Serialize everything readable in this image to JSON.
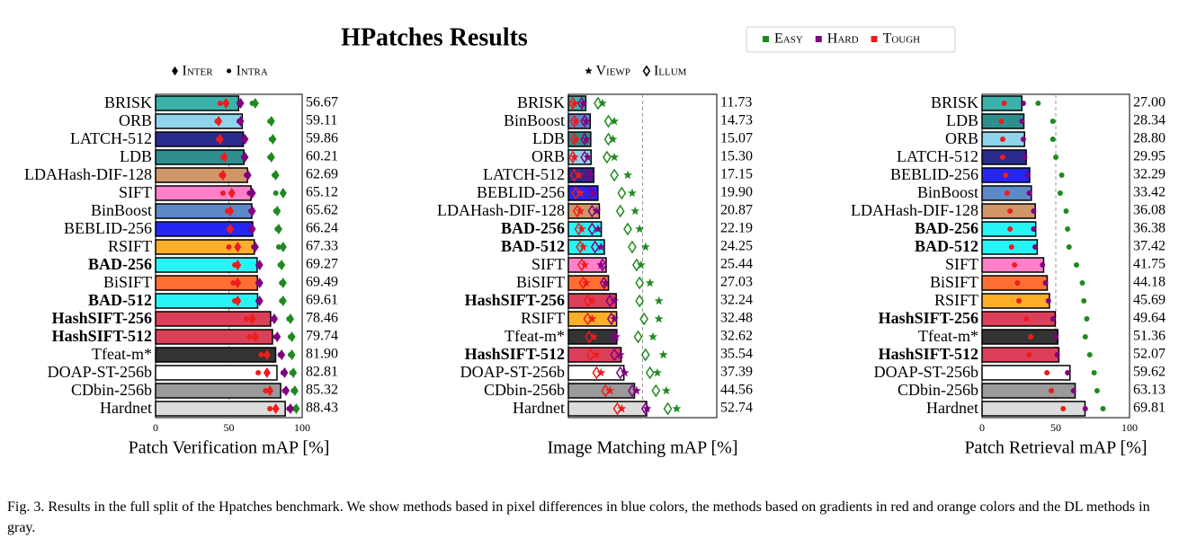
{
  "title": "HPatches Results",
  "legend": [
    {
      "name": "Easy",
      "color": "#1f8a1f"
    },
    {
      "name": "Hard",
      "color": "#800080"
    },
    {
      "name": "Tough",
      "color": "#ee1c1c"
    }
  ],
  "caption": "Fig. 3.  Results in the full split of the Hpatches benchmark. We show methods based in pixel differences in blue colors, the methods based on gradients in red and orange colors and the DL methods in gray.",
  "chart_data": [
    {
      "type": "bar",
      "orientation": "horizontal",
      "xlabel": "Patch Verification mAP [%]",
      "marker_legend": [
        {
          "name": "Inter",
          "marker": "diamond"
        },
        {
          "name": "Intra",
          "marker": "dot"
        }
      ],
      "categories": [
        "BRISK",
        "ORB",
        "LATCH-512",
        "LDB",
        "LDAHash-DIF-128",
        "SIFT",
        "BinBoost",
        "BEBLID-256",
        "RSIFT",
        "BAD-256",
        "BiSIFT",
        "BAD-512",
        "HashSIFT-256",
        "HashSIFT-512",
        "Tfeat-m*",
        "DOAP-ST-256b",
        "CDbin-256b",
        "Hardnet"
      ],
      "bold": [
        false,
        false,
        false,
        false,
        false,
        false,
        false,
        false,
        false,
        true,
        false,
        true,
        true,
        true,
        false,
        false,
        false,
        false
      ],
      "values": [
        56.67,
        59.11,
        59.86,
        60.21,
        62.69,
        65.12,
        65.62,
        66.24,
        67.33,
        69.27,
        69.49,
        69.61,
        78.46,
        79.74,
        81.9,
        82.81,
        85.32,
        88.43
      ],
      "value_labels": [
        "56.67",
        "59.11",
        "59.86",
        "60.21",
        "62.69",
        "65.12",
        "65.62",
        "66.24",
        "67.33",
        "69.27",
        "69.49",
        "69.61",
        "78.46",
        "79.74",
        "81.90",
        "82.81",
        "85.32",
        "88.43"
      ],
      "colors": [
        "#3cb3aa",
        "#8fd3ec",
        "#2b2b8f",
        "#2f8f8f",
        "#d09668",
        "#ff80c8",
        "#5b8ac6",
        "#2525f5",
        "#ffae2a",
        "#26f5f5",
        "#ff6e32",
        "#26f5f5",
        "#dc4058",
        "#dc4058",
        "#333333",
        "#ffffff",
        "#9a9a9a",
        "#dcdcdc"
      ],
      "series": [
        {
          "color": "#1f8a1f",
          "marker": "diamond",
          "values": [
            68,
            79,
            80,
            79,
            82,
            87,
            83,
            84,
            87,
            86,
            87,
            87,
            92,
            93,
            93,
            94,
            95,
            96
          ]
        },
        {
          "color": "#1f8a1f",
          "marker": "dot",
          "values": [
            66,
            78,
            79,
            78,
            81,
            82,
            82,
            83,
            84,
            85,
            86,
            86,
            91,
            92,
            92,
            93,
            94,
            95
          ]
        },
        {
          "color": "#800080",
          "marker": "diamond",
          "values": [
            58,
            58,
            61,
            61,
            63,
            66,
            66,
            66,
            68,
            71,
            71,
            71,
            81,
            83,
            86,
            88,
            89,
            92
          ]
        },
        {
          "color": "#800080",
          "marker": "dot",
          "values": [
            57,
            57,
            60,
            60,
            62,
            64,
            65,
            65,
            67,
            70,
            70,
            70,
            80,
            82,
            85,
            87,
            88,
            91
          ]
        },
        {
          "color": "#ee1c1c",
          "marker": "diamond",
          "values": [
            48,
            43,
            44,
            47,
            46,
            52,
            51,
            51,
            56,
            56,
            56,
            56,
            66,
            68,
            76,
            76,
            78,
            82
          ]
        },
        {
          "color": "#ee1c1c",
          "marker": "dot",
          "values": [
            44,
            42,
            43,
            46,
            45,
            46,
            49,
            50,
            50,
            54,
            53,
            54,
            62,
            64,
            72,
            70,
            75,
            78
          ]
        }
      ],
      "xlim": [
        0,
        100
      ],
      "xticks": [
        0,
        50,
        100
      ],
      "grid": true
    },
    {
      "type": "bar",
      "orientation": "horizontal",
      "xlabel": "Image Matching mAP [%]",
      "marker_legend": [
        {
          "name": "Viewp",
          "marker": "star"
        },
        {
          "name": "Illum",
          "marker": "open-diamond"
        }
      ],
      "categories": [
        "BRISK",
        "BinBoost",
        "LDB",
        "ORB",
        "LATCH-512",
        "BEBLID-256",
        "LDAHash-DIF-128",
        "BAD-256",
        "BAD-512",
        "SIFT",
        "BiSIFT",
        "HashSIFT-256",
        "RSIFT",
        "Tfeat-m*",
        "HashSIFT-512",
        "DOAP-ST-256b",
        "CDbin-256b",
        "Hardnet"
      ],
      "bold": [
        false,
        false,
        false,
        false,
        false,
        false,
        false,
        true,
        true,
        false,
        false,
        true,
        false,
        false,
        true,
        false,
        false,
        false
      ],
      "values": [
        11.73,
        14.73,
        15.07,
        15.3,
        17.15,
        19.9,
        20.87,
        22.19,
        24.25,
        25.44,
        27.03,
        32.24,
        32.48,
        32.62,
        35.54,
        37.39,
        44.56,
        52.74
      ],
      "value_labels": [
        "11.73",
        "14.73",
        "15.07",
        "15.30",
        "17.15",
        "19.90",
        "20.87",
        "22.19",
        "24.25",
        "25.44",
        "27.03",
        "32.24",
        "32.48",
        "32.62",
        "35.54",
        "37.39",
        "44.56",
        "52.74"
      ],
      "colors": [
        "#3cb3aa",
        "#5b8ac6",
        "#2f8f8f",
        "#8fd3ec",
        "#2b2b8f",
        "#2525f5",
        "#d09668",
        "#26f5f5",
        "#26f5f5",
        "#ff80c8",
        "#ff6e32",
        "#dc4058",
        "#ffae2a",
        "#333333",
        "#dc4058",
        "#ffffff",
        "#9a9a9a",
        "#dcdcdc"
      ],
      "series": [
        {
          "color": "#1f8a1f",
          "marker": "star",
          "values": [
            23,
            31,
            30,
            31,
            40,
            43,
            45,
            48,
            52,
            49,
            55,
            61,
            61,
            57,
            64,
            60,
            66,
            73
          ]
        },
        {
          "color": "#1f8a1f",
          "marker": "open-diamond",
          "values": [
            20,
            27,
            27,
            26,
            31,
            36,
            35,
            40,
            43,
            46,
            48,
            48,
            51,
            47,
            52,
            55,
            59,
            67
          ]
        },
        {
          "color": "#800080",
          "marker": "star",
          "values": [
            10,
            12,
            12,
            13,
            15,
            17,
            19,
            20,
            22,
            22,
            25,
            31,
            31,
            32,
            35,
            38,
            46,
            53
          ]
        },
        {
          "color": "#800080",
          "marker": "open-diamond",
          "values": [
            9,
            11,
            11,
            11,
            13,
            15,
            16,
            16,
            18,
            23,
            24,
            28,
            29,
            31,
            31,
            35,
            43,
            52
          ]
        },
        {
          "color": "#ee1c1c",
          "marker": "star",
          "values": [
            4,
            5,
            5,
            4,
            7,
            8,
            8,
            9,
            10,
            11,
            12,
            16,
            16,
            17,
            19,
            22,
            28,
            36
          ]
        },
        {
          "color": "#ee1c1c",
          "marker": "open-diamond",
          "values": [
            3,
            4,
            4,
            3,
            4,
            5,
            6,
            7,
            8,
            9,
            10,
            13,
            13,
            14,
            15,
            19,
            25,
            33
          ]
        }
      ],
      "xlim": [
        0,
        100
      ],
      "xticks": [],
      "xgrid": [
        50
      ],
      "grid": true
    },
    {
      "type": "bar",
      "orientation": "horizontal",
      "xlabel": "Patch Retrieval mAP [%]",
      "categories": [
        "BRISK",
        "LDB",
        "ORB",
        "LATCH-512",
        "BEBLID-256",
        "BinBoost",
        "LDAHash-DIF-128",
        "BAD-256",
        "BAD-512",
        "SIFT",
        "BiSIFT",
        "RSIFT",
        "HashSIFT-256",
        "Tfeat-m*",
        "HashSIFT-512",
        "DOAP-ST-256b",
        "CDbin-256b",
        "Hardnet"
      ],
      "bold": [
        false,
        false,
        false,
        false,
        false,
        false,
        false,
        true,
        true,
        false,
        false,
        false,
        true,
        false,
        true,
        false,
        false,
        false
      ],
      "values": [
        27.0,
        28.34,
        28.8,
        29.95,
        32.29,
        33.42,
        36.08,
        36.38,
        37.42,
        41.75,
        44.18,
        45.69,
        49.64,
        51.36,
        52.07,
        59.62,
        63.13,
        69.81
      ],
      "value_labels": [
        "27.00",
        "28.34",
        "28.80",
        "29.95",
        "32.29",
        "33.42",
        "36.08",
        "36.38",
        "37.42",
        "41.75",
        "44.18",
        "45.69",
        "49.64",
        "51.36",
        "52.07",
        "59.62",
        "63.13",
        "69.81"
      ],
      "colors": [
        "#3cb3aa",
        "#2f8f8f",
        "#8fd3ec",
        "#2b2b8f",
        "#2525f5",
        "#5b8ac6",
        "#d09668",
        "#26f5f5",
        "#26f5f5",
        "#ff80c8",
        "#ff6e32",
        "#ffae2a",
        "#dc4058",
        "#333333",
        "#dc4058",
        "#ffffff",
        "#9a9a9a",
        "#dcdcdc"
      ],
      "series": [
        {
          "color": "#1f8a1f",
          "marker": "dot",
          "values": [
            38,
            48,
            48,
            50,
            54,
            53,
            57,
            58,
            59,
            64,
            68,
            69,
            71,
            70,
            73,
            76,
            78,
            82
          ]
        },
        {
          "color": "#800080",
          "marker": "dot",
          "values": [
            28,
            27,
            28,
            29,
            31,
            32,
            35,
            35,
            36,
            41,
            43,
            45,
            48,
            50,
            51,
            58,
            62,
            70
          ]
        },
        {
          "color": "#ee1c1c",
          "marker": "dot",
          "values": [
            15,
            13,
            14,
            14,
            16,
            17,
            19,
            19,
            20,
            22,
            24,
            25,
            30,
            33,
            32,
            44,
            47,
            55
          ]
        }
      ],
      "xlim": [
        0,
        100
      ],
      "xticks": [
        0,
        50,
        100
      ],
      "grid": true
    }
  ]
}
